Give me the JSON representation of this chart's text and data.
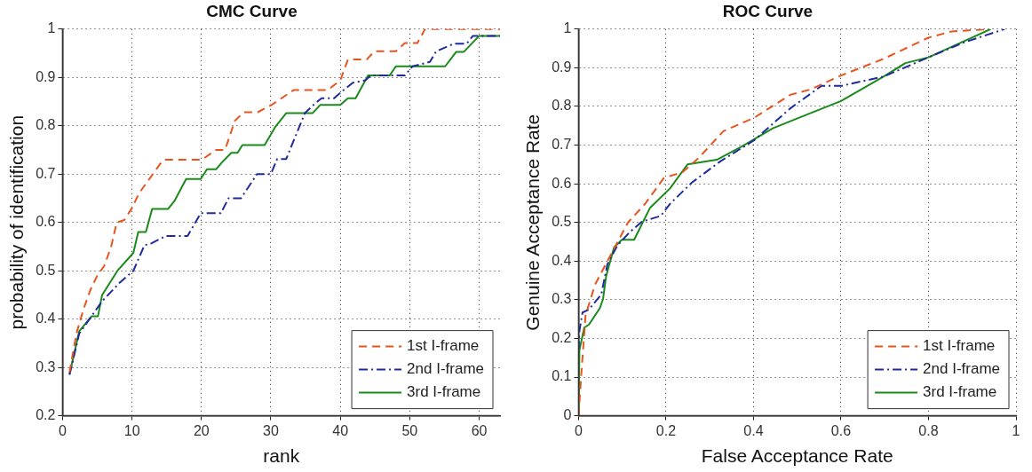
{
  "chart_data": [
    {
      "type": "line",
      "title": "CMC Curve",
      "xlabel": "rank",
      "ylabel": "probability of identification",
      "xlim": [
        0,
        63
      ],
      "xticks": [
        0,
        10,
        20,
        30,
        40,
        50,
        60
      ],
      "ylim": [
        0.2,
        1
      ],
      "yticks": [
        0.2,
        0.3,
        0.4,
        0.5,
        0.6,
        0.7,
        0.8,
        0.9,
        1
      ],
      "grid": true,
      "legend": "bottom right",
      "marker": "none",
      "series": [
        {
          "name": "1st I-frame",
          "color": "#e8541e",
          "line_style": "dashed",
          "x": [
            1,
            2,
            3,
            4,
            5,
            6,
            7,
            7.8,
            8.9,
            10,
            11,
            12,
            13,
            14,
            14.7,
            20.1,
            22.1,
            23.4,
            24.8,
            26.1,
            28.1,
            30.2,
            33.3,
            36,
            38.2,
            40,
            41.1,
            43.8,
            44.9,
            48,
            49.3,
            51.1,
            52.2,
            63
          ],
          "values": [
            0.29,
            0.37,
            0.42,
            0.46,
            0.49,
            0.51,
            0.55,
            0.6,
            0.605,
            0.63,
            0.66,
            0.68,
            0.7,
            0.72,
            0.73,
            0.73,
            0.75,
            0.75,
            0.81,
            0.828,
            0.828,
            0.844,
            0.874,
            0.874,
            0.874,
            0.894,
            0.937,
            0.937,
            0.954,
            0.954,
            0.971,
            0.971,
            1,
            1
          ]
        },
        {
          "name": "2nd I-frame",
          "color": "#1f2a9c",
          "line_style": "dashdot",
          "x": [
            1,
            2.4,
            5.7,
            8.2,
            10.2,
            11.8,
            12.7,
            14.9,
            18,
            19.9,
            22.8,
            23.9,
            25.7,
            28,
            30,
            30.9,
            32.2,
            33.3,
            34.9,
            36.2,
            37.3,
            39.1,
            40.4,
            41.8,
            43.6,
            44.4,
            49.3,
            50.4,
            52.9,
            53.8,
            56.4,
            58.2,
            59.1,
            60,
            63
          ],
          "values": [
            0.285,
            0.37,
            0.437,
            0.475,
            0.5,
            0.553,
            0.556,
            0.572,
            0.572,
            0.619,
            0.619,
            0.65,
            0.65,
            0.7,
            0.7,
            0.731,
            0.731,
            0.77,
            0.826,
            0.844,
            0.857,
            0.857,
            0.873,
            0.889,
            0.894,
            0.904,
            0.904,
            0.923,
            0.932,
            0.954,
            0.97,
            0.97,
            0.986,
            0.986,
            0.986
          ]
        },
        {
          "name": "3rd I-frame",
          "color": "#1a8a1a",
          "line_style": "solid",
          "x": [
            1,
            2.4,
            4.2,
            5.1,
            5.7,
            7.9,
            10.2,
            10.9,
            12,
            12.9,
            15.2,
            16.1,
            17.8,
            19.9,
            20.8,
            22.1,
            23,
            24.3,
            25.2,
            25.9,
            29.1,
            30.6,
            32.2,
            36,
            37.1,
            40,
            41.1,
            42.2,
            44,
            47.1,
            48,
            55.1,
            56.7,
            57.8,
            60,
            63
          ],
          "values": [
            0.285,
            0.375,
            0.406,
            0.406,
            0.45,
            0.5,
            0.537,
            0.58,
            0.58,
            0.628,
            0.628,
            0.644,
            0.69,
            0.69,
            0.71,
            0.71,
            0.725,
            0.744,
            0.744,
            0.76,
            0.76,
            0.797,
            0.826,
            0.826,
            0.843,
            0.843,
            0.857,
            0.857,
            0.904,
            0.904,
            0.923,
            0.923,
            0.953,
            0.953,
            0.986,
            0.986
          ]
        }
      ]
    },
    {
      "type": "line",
      "title": "ROC Curve",
      "xlabel": "False Acceptance Rate",
      "ylabel": "Genuine Acceptance Rate",
      "xlim": [
        0,
        1
      ],
      "xticks": [
        0,
        0.2,
        0.4,
        0.6,
        0.8,
        1
      ],
      "ylim": [
        0,
        1
      ],
      "yticks": [
        0,
        0.1,
        0.2,
        0.3,
        0.4,
        0.5,
        0.6,
        0.7,
        0.8,
        0.9,
        1
      ],
      "grid": true,
      "legend": "bottom right",
      "marker": "none",
      "series": [
        {
          "name": "1st I-frame",
          "color": "#e8541e",
          "line_style": "dashed",
          "x": [
            0,
            0.006,
            0.016,
            0.038,
            0.066,
            0.113,
            0.152,
            0.195,
            0.238,
            0.274,
            0.331,
            0.402,
            0.484,
            0.53,
            0.6,
            0.697,
            0.8,
            0.853,
            0.938
          ],
          "values": [
            0,
            0.103,
            0.26,
            0.34,
            0.4,
            0.5,
            0.548,
            0.615,
            0.63,
            0.666,
            0.736,
            0.771,
            0.83,
            0.844,
            0.88,
            0.923,
            0.978,
            0.994,
            1
          ]
        },
        {
          "name": "2nd I-frame",
          "color": "#1f2a9c",
          "line_style": "dashdot",
          "x": [
            0,
            0.002,
            0.009,
            0.024,
            0.052,
            0.066,
            0.088,
            0.116,
            0.145,
            0.188,
            0.209,
            0.259,
            0.324,
            0.402,
            0.484,
            0.555,
            0.6,
            0.648,
            0.697,
            0.8,
            0.882,
            0.974
          ],
          "values": [
            0.17,
            0.22,
            0.267,
            0.275,
            0.314,
            0.392,
            0.439,
            0.474,
            0.502,
            0.517,
            0.548,
            0.603,
            0.658,
            0.713,
            0.795,
            0.853,
            0.853,
            0.865,
            0.877,
            0.927,
            0.966,
            1
          ]
        },
        {
          "name": "3rd I-frame",
          "color": "#1a8a1a",
          "line_style": "solid",
          "x": [
            0,
            0.002,
            0.013,
            0.024,
            0.049,
            0.056,
            0.063,
            0.081,
            0.099,
            0.127,
            0.163,
            0.209,
            0.249,
            0.316,
            0.374,
            0.445,
            0.531,
            0.6,
            0.697,
            0.747,
            0.8,
            0.942
          ],
          "values": [
            0,
            0.17,
            0.228,
            0.236,
            0.279,
            0.302,
            0.361,
            0.435,
            0.455,
            0.455,
            0.537,
            0.588,
            0.65,
            0.662,
            0.697,
            0.744,
            0.783,
            0.814,
            0.877,
            0.912,
            0.927,
            1
          ]
        }
      ]
    }
  ]
}
